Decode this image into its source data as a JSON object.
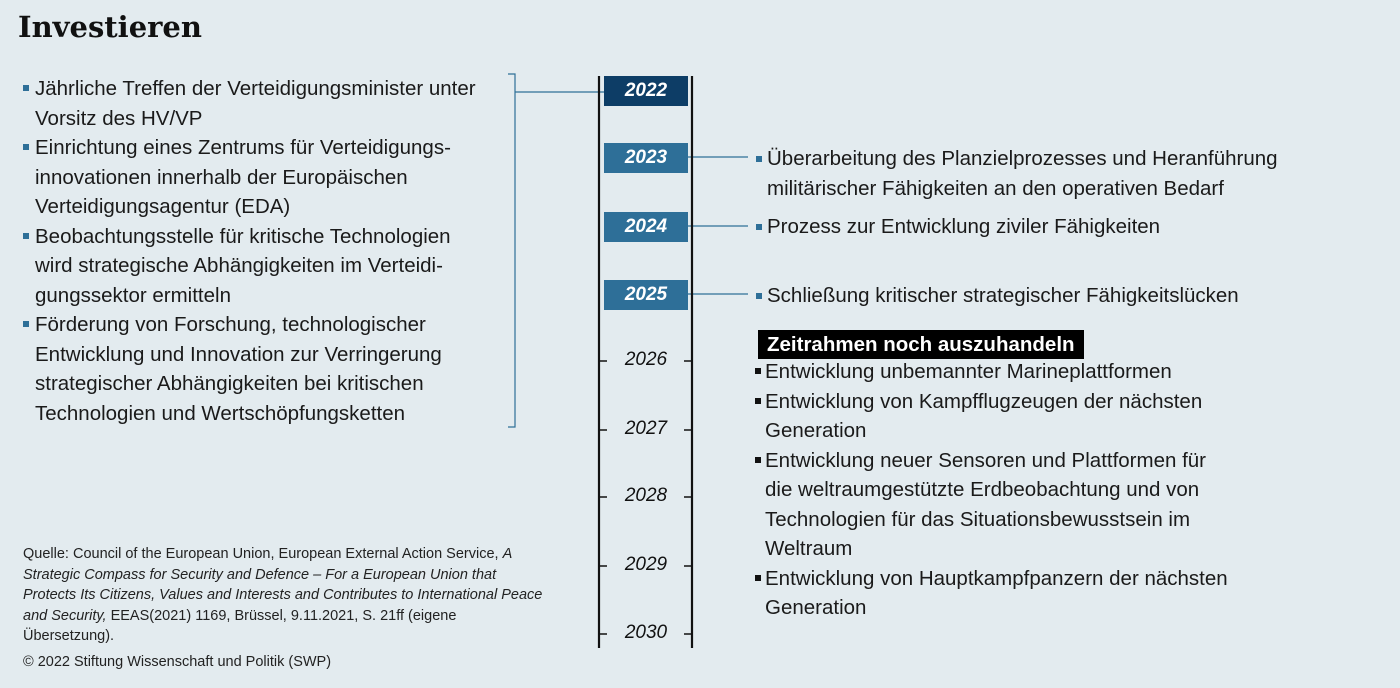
{
  "title": "Investieren",
  "left_items": [
    "Jährliche Treffen der Verteidigungsminister unter Vorsitz des HV/VP",
    "Einrichtung eines Zentrums für Verteidigungs-innovationen innerhalb der Europäischen Verteidigungsagentur (EDA)",
    "Beobachtungsstelle für kritische Technologien wird strategische Abhängigkeiten im Verteidi-gungssektor ermitteln",
    "Förderung von Forschung, technologischer Entwicklung und Innovation zur Verringerung strategischer Abhängigkeiten bei kritischen Technologien und Wertschöpfungsketten"
  ],
  "timeline": {
    "years": [
      "2022",
      "2023",
      "2024",
      "2025",
      "2026",
      "2027",
      "2028",
      "2029",
      "2030"
    ],
    "highlight_colors": {
      "2022": "#0d3d66",
      "2023": "#2e6f98",
      "2024": "#2e6f98",
      "2025": "#2e6f98"
    }
  },
  "right_items": {
    "2023": "Überarbeitung des Planzielprozesses und Heranführung militärischer Fähigkeiten an den operativen Bedarf",
    "2024": "Prozess zur Entwicklung ziviler Fähigkeiten",
    "2025": "Schließung kritischer strategischer Fähigkeitslücken"
  },
  "tbd": {
    "heading": "Zeitrahmen noch auszuhandeln",
    "items": [
      "Entwicklung unbemannter Marineplattformen",
      "Entwicklung von Kampfflugzeugen der nächsten Generation",
      "Entwicklung neuer Sensoren und Plattformen für die weltraumgestützte Erdbeobachtung und von Technologien für das Situationsbewusstsein im Weltraum",
      "Entwicklung von Hauptkampfpanzern der nächsten Generation"
    ]
  },
  "source": {
    "prefix": "Quelle: Council of the European Union, European External Action Service,",
    "title_italic": "A Strategic Compass for Security and Defence – For a European Union that Protects Its Citizens, Values and Interests and Contributes to International Peace and Security,",
    "suffix": "EEAS(2021) 1169, Brüssel, 9.11.2021, S. 21ff (eigene Übersetzung)."
  },
  "copyright": "© 2022 Stiftung Wissenschaft und Politik (SWP)"
}
